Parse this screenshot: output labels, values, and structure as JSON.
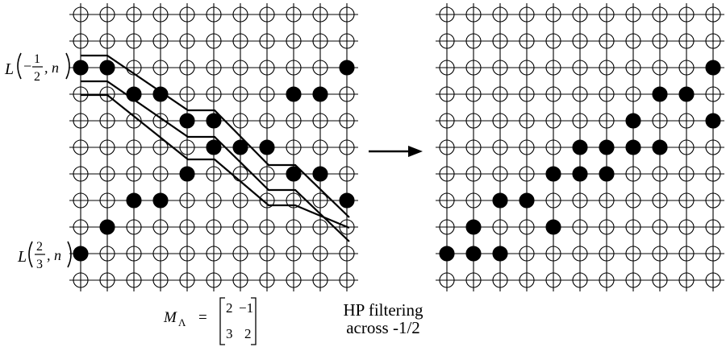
{
  "left_panel": {
    "label_top": {
      "prefix": "L",
      "num": "1",
      "den": "2",
      "sign": "−",
      "suffix": ", n"
    },
    "label_bottom": {
      "prefix": "L",
      "num": "2",
      "den": "3",
      "sign": "",
      "suffix": ", n"
    },
    "filled": [
      [
        2,
        0
      ],
      [
        2,
        1
      ],
      [
        2,
        10
      ],
      [
        3,
        2
      ],
      [
        3,
        3
      ],
      [
        3,
        8
      ],
      [
        3,
        9
      ],
      [
        4,
        4
      ],
      [
        4,
        5
      ],
      [
        5,
        5
      ],
      [
        5,
        6
      ],
      [
        5,
        7
      ],
      [
        6,
        4
      ],
      [
        6,
        8
      ],
      [
        6,
        9
      ],
      [
        7,
        2
      ],
      [
        7,
        3
      ],
      [
        7,
        10
      ],
      [
        8,
        1
      ],
      [
        9,
        0
      ]
    ]
  },
  "right_panel": {
    "filled": [
      [
        2,
        10
      ],
      [
        3,
        8
      ],
      [
        3,
        9
      ],
      [
        4,
        7
      ],
      [
        4,
        10
      ],
      [
        5,
        5
      ],
      [
        5,
        6
      ],
      [
        5,
        7
      ],
      [
        5,
        8
      ],
      [
        6,
        4
      ],
      [
        6,
        5
      ],
      [
        6,
        6
      ],
      [
        7,
        2
      ],
      [
        7,
        3
      ],
      [
        8,
        1
      ],
      [
        8,
        4
      ],
      [
        9,
        0
      ],
      [
        9,
        1
      ],
      [
        9,
        2
      ]
    ]
  },
  "matrix": {
    "name": "M",
    "subscript": "Λ",
    "equals": "=",
    "rows": [
      [
        "2",
        "−1"
      ],
      [
        "3",
        "2"
      ]
    ]
  },
  "caption": {
    "line1": "HP filtering",
    "line2": "across -1/2"
  }
}
